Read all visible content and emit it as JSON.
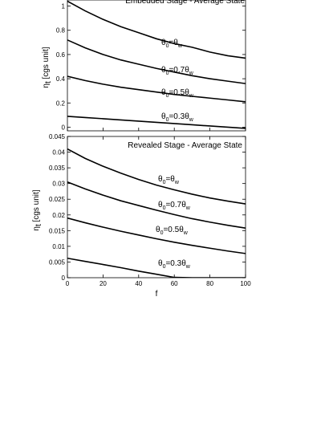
{
  "chart_data": [
    {
      "type": "line",
      "title": "Embedded Stage - Average State",
      "ylabel": "η_t [cgs unit]",
      "ylabel_main": "η",
      "ylabel_sub": "t",
      "ylabel_unit": " [cgs unit]",
      "xlim": [
        0,
        100
      ],
      "ylim": [
        -0.03,
        1.05
      ],
      "yticks": [
        0,
        0.2,
        0.4,
        0.6,
        0.8,
        1
      ],
      "ytick_labels": [
        "0",
        "0.2",
        "0.4",
        "0.6",
        "0.8",
        "1"
      ],
      "x": [
        0,
        10,
        20,
        30,
        40,
        50,
        60,
        70,
        80,
        90,
        100
      ],
      "series": [
        {
          "label": "θ_0=θ_w",
          "label_parts": [
            "θ",
            "0",
            "=θ",
            "w"
          ],
          "values": [
            1.04,
            0.96,
            0.89,
            0.83,
            0.78,
            0.73,
            0.69,
            0.66,
            0.62,
            0.59,
            0.57
          ]
        },
        {
          "label": "θ_0=0.7θ_w",
          "label_parts": [
            "θ",
            "0",
            "=0.7θ",
            "w"
          ],
          "values": [
            0.72,
            0.655,
            0.6,
            0.555,
            0.52,
            0.485,
            0.455,
            0.425,
            0.4,
            0.38,
            0.36
          ]
        },
        {
          "label": "θ_0=0.5θ_w",
          "label_parts": [
            "θ",
            "0",
            "=0.5θ",
            "w"
          ],
          "values": [
            0.42,
            0.385,
            0.355,
            0.33,
            0.31,
            0.29,
            0.27,
            0.255,
            0.24,
            0.225,
            0.21
          ]
        },
        {
          "label": "θ_0=0.3θ_w",
          "label_parts": [
            "θ",
            "0",
            "=0.3θ",
            "w"
          ],
          "values": [
            0.09,
            0.08,
            0.07,
            0.06,
            0.05,
            0.04,
            0.03,
            0.02,
            0.01,
            0.0,
            -0.01
          ]
        }
      ],
      "grid": false
    },
    {
      "type": "line",
      "title": "Revealed Stage - Average State",
      "xlabel": "f",
      "ylabel": "η_t [cgs unit]",
      "ylabel_main": "η",
      "ylabel_sub": "t",
      "ylabel_unit": " [cgs unit]",
      "xlim": [
        0,
        100
      ],
      "ylim": [
        0,
        0.045
      ],
      "xticks": [
        0,
        20,
        40,
        60,
        80,
        100
      ],
      "xtick_labels": [
        "0",
        "20",
        "40",
        "60",
        "80",
        "100"
      ],
      "yticks": [
        0,
        0.005,
        0.01,
        0.015,
        0.02,
        0.025,
        0.03,
        0.035,
        0.04,
        0.045
      ],
      "ytick_labels": [
        "0",
        "0.005",
        "0.01",
        "0.015",
        "0.02",
        "0.025",
        "0.03",
        "0.035",
        "0.04",
        "0.045"
      ],
      "x": [
        0,
        10,
        20,
        30,
        40,
        50,
        60,
        70,
        80,
        90,
        100
      ],
      "series": [
        {
          "label": "θ_0=θ_w",
          "label_parts": [
            "θ",
            "0",
            "=θ",
            "w"
          ],
          "values": [
            0.041,
            0.038,
            0.0355,
            0.0333,
            0.0313,
            0.0295,
            0.028,
            0.0266,
            0.0254,
            0.0244,
            0.0235
          ]
        },
        {
          "label": "θ_0=0.7θ_w",
          "label_parts": [
            "θ",
            "0",
            "=0.7θ",
            "w"
          ],
          "values": [
            0.0305,
            0.0283,
            0.0263,
            0.0245,
            0.023,
            0.0215,
            0.0201,
            0.0188,
            0.0177,
            0.0167,
            0.0158
          ]
        },
        {
          "label": "θ_0=0.5θ_w",
          "label_parts": [
            "θ",
            "0",
            "=0.5θ",
            "w"
          ],
          "values": [
            0.019,
            0.0175,
            0.0161,
            0.0148,
            0.0136,
            0.0124,
            0.0113,
            0.0103,
            0.0094,
            0.0085,
            0.0077
          ]
        },
        {
          "label": "θ_0=0.3θ_w",
          "label_parts": [
            "θ",
            "0",
            "=0.3θ",
            "w"
          ],
          "values": [
            0.0062,
            0.0052,
            0.0042,
            0.0032,
            0.0021,
            0.0011,
            0.0001,
            0.0,
            0.0,
            0.0,
            0.0
          ]
        }
      ],
      "grid": false
    }
  ]
}
